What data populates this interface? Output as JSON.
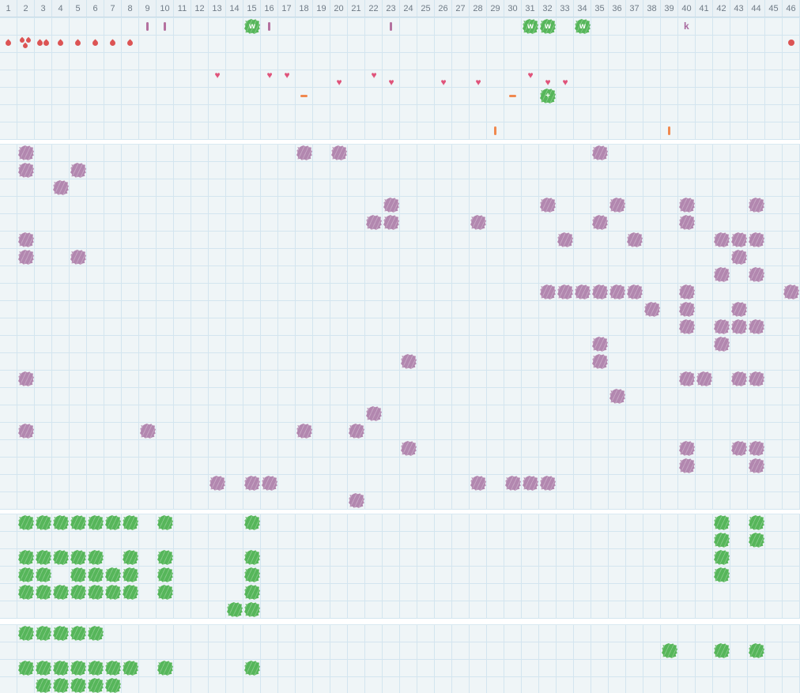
{
  "header": {
    "columns": [
      "1",
      "2",
      "3",
      "4",
      "5",
      "6",
      "7",
      "8",
      "9",
      "10",
      "11",
      "12",
      "13",
      "14",
      "15",
      "16",
      "17",
      "18",
      "19",
      "20",
      "21",
      "22",
      "23",
      "24",
      "25",
      "26",
      "27",
      "28",
      "29",
      "30",
      "31",
      "32",
      "33",
      "34",
      "35",
      "36",
      "37",
      "38",
      "39",
      "40",
      "41",
      "42",
      "43",
      "44",
      "45",
      "46"
    ]
  },
  "icons": {
    "w_blob_letter": "w",
    "plus_blob_letter": "+",
    "k_marker_letter": "k",
    "heart_glyph": "♥"
  },
  "colors": {
    "grid_background": "#eff5f7",
    "grid_line": "#d3e5ef",
    "header_background": "#eaf1f5",
    "header_text": "#6f7b86",
    "purple_blob": "#b287af",
    "green_blob": "#56b65a",
    "heart": "#e0537a",
    "drop_red": "#dc5454",
    "purple_tick": "#b4719f",
    "orange_mark": "#f0884e",
    "k_letter": "#a8689e"
  },
  "sections": {
    "top": {
      "rows": 7,
      "sprites": [
        {
          "type": "tick",
          "col": 9,
          "row": 1,
          "color": "purple"
        },
        {
          "type": "tick",
          "col": 10,
          "row": 1,
          "color": "purple"
        },
        {
          "type": "wblob",
          "col": 15,
          "row": 1
        },
        {
          "type": "tick",
          "col": 16,
          "row": 1,
          "color": "purple"
        },
        {
          "type": "tick",
          "col": 23,
          "row": 1,
          "color": "purple"
        },
        {
          "type": "wblob",
          "col": 31,
          "row": 1
        },
        {
          "type": "wblob",
          "col": 32,
          "row": 1
        },
        {
          "type": "wblob",
          "col": 34,
          "row": 1
        },
        {
          "type": "kmark",
          "col": 40,
          "row": 1
        },
        {
          "type": "drops",
          "col": 1,
          "row": 2,
          "count": 1
        },
        {
          "type": "drops",
          "col": 2,
          "row": 2,
          "count": 3
        },
        {
          "type": "drops",
          "col": 3,
          "row": 2,
          "count": 2
        },
        {
          "type": "drops",
          "col": 4,
          "row": 2,
          "count": 1
        },
        {
          "type": "drops",
          "col": 5,
          "row": 2,
          "count": 1
        },
        {
          "type": "drops",
          "col": 6,
          "row": 2,
          "count": 1
        },
        {
          "type": "drops",
          "col": 7,
          "row": 2,
          "count": 1
        },
        {
          "type": "drops",
          "col": 8,
          "row": 2,
          "count": 1
        },
        {
          "type": "dot",
          "col": 46,
          "row": 2
        },
        {
          "type": "heart",
          "col": 13,
          "row": 4,
          "pos": "high"
        },
        {
          "type": "heart",
          "col": 16,
          "row": 4,
          "pos": "high"
        },
        {
          "type": "heart",
          "col": 17,
          "row": 4,
          "pos": "high"
        },
        {
          "type": "heart",
          "col": 22,
          "row": 4,
          "pos": "high"
        },
        {
          "type": "heart",
          "col": 31,
          "row": 4,
          "pos": "high"
        },
        {
          "type": "heart",
          "col": 20,
          "row": 4,
          "pos": "low"
        },
        {
          "type": "heart",
          "col": 23,
          "row": 4,
          "pos": "low"
        },
        {
          "type": "heart",
          "col": 26,
          "row": 4,
          "pos": "low"
        },
        {
          "type": "heart",
          "col": 28,
          "row": 4,
          "pos": "low"
        },
        {
          "type": "heart",
          "col": 32,
          "row": 4,
          "pos": "low"
        },
        {
          "type": "heart",
          "col": 33,
          "row": 4,
          "pos": "low"
        },
        {
          "type": "dash",
          "col": 18,
          "row": 5
        },
        {
          "type": "dash",
          "col": 30,
          "row": 5
        },
        {
          "type": "plusblob",
          "col": 32,
          "row": 5
        },
        {
          "type": "tick",
          "col": 29,
          "row": 7,
          "color": "orange"
        },
        {
          "type": "tick",
          "col": 39,
          "row": 7,
          "color": "orange"
        }
      ]
    },
    "field": {
      "rows": 21,
      "purple_blobs": [
        [
          2,
          1
        ],
        [
          18,
          1
        ],
        [
          20,
          1
        ],
        [
          35,
          1
        ],
        [
          2,
          2
        ],
        [
          5,
          2
        ],
        [
          4,
          3
        ],
        [
          23,
          4
        ],
        [
          32,
          4
        ],
        [
          36,
          4
        ],
        [
          40,
          4
        ],
        [
          44,
          4
        ],
        [
          22,
          5
        ],
        [
          23,
          5
        ],
        [
          28,
          5
        ],
        [
          35,
          5
        ],
        [
          40,
          5
        ],
        [
          2,
          6
        ],
        [
          33,
          6
        ],
        [
          37,
          6
        ],
        [
          42,
          6
        ],
        [
          43,
          6
        ],
        [
          44,
          6
        ],
        [
          2,
          7
        ],
        [
          5,
          7
        ],
        [
          43,
          7
        ],
        [
          42,
          8
        ],
        [
          44,
          8
        ],
        [
          32,
          9
        ],
        [
          33,
          9
        ],
        [
          34,
          9
        ],
        [
          35,
          9
        ],
        [
          36,
          9
        ],
        [
          37,
          9
        ],
        [
          40,
          9
        ],
        [
          46,
          9
        ],
        [
          38,
          10
        ],
        [
          40,
          10
        ],
        [
          43,
          10
        ],
        [
          40,
          11
        ],
        [
          42,
          11
        ],
        [
          43,
          11
        ],
        [
          44,
          11
        ],
        [
          35,
          12
        ],
        [
          42,
          12
        ],
        [
          24,
          13
        ],
        [
          35,
          13
        ],
        [
          2,
          14
        ],
        [
          40,
          14
        ],
        [
          41,
          14
        ],
        [
          43,
          14
        ],
        [
          44,
          14
        ],
        [
          36,
          15
        ],
        [
          22,
          16
        ],
        [
          2,
          17
        ],
        [
          9,
          17
        ],
        [
          18,
          17
        ],
        [
          21,
          17
        ],
        [
          24,
          18
        ],
        [
          40,
          18
        ],
        [
          43,
          18
        ],
        [
          44,
          18
        ],
        [
          40,
          19
        ],
        [
          44,
          19
        ],
        [
          13,
          20
        ],
        [
          15,
          20
        ],
        [
          16,
          20
        ],
        [
          28,
          20
        ],
        [
          30,
          20
        ],
        [
          31,
          20
        ],
        [
          32,
          20
        ],
        [
          21,
          21
        ]
      ]
    },
    "green1": {
      "rows": 6,
      "green_blobs": [
        [
          2,
          1
        ],
        [
          3,
          1
        ],
        [
          4,
          1
        ],
        [
          5,
          1
        ],
        [
          6,
          1
        ],
        [
          7,
          1
        ],
        [
          8,
          1
        ],
        [
          10,
          1
        ],
        [
          15,
          1
        ],
        [
          42,
          1
        ],
        [
          44,
          1
        ],
        [
          42,
          2
        ],
        [
          44,
          2
        ],
        [
          2,
          3
        ],
        [
          3,
          3
        ],
        [
          4,
          3
        ],
        [
          5,
          3
        ],
        [
          6,
          3
        ],
        [
          8,
          3
        ],
        [
          10,
          3
        ],
        [
          15,
          3
        ],
        [
          42,
          3
        ],
        [
          2,
          4
        ],
        [
          3,
          4
        ],
        [
          5,
          4
        ],
        [
          6,
          4
        ],
        [
          7,
          4
        ],
        [
          8,
          4
        ],
        [
          10,
          4
        ],
        [
          15,
          4
        ],
        [
          42,
          4
        ],
        [
          2,
          5
        ],
        [
          3,
          5
        ],
        [
          4,
          5
        ],
        [
          5,
          5
        ],
        [
          6,
          5
        ],
        [
          7,
          5
        ],
        [
          8,
          5
        ],
        [
          10,
          5
        ],
        [
          15,
          5
        ],
        [
          14,
          6
        ],
        [
          15,
          6
        ]
      ]
    },
    "green2": {
      "rows": 4,
      "green_blobs": [
        [
          2,
          1
        ],
        [
          3,
          1
        ],
        [
          4,
          1
        ],
        [
          5,
          1
        ],
        [
          6,
          1
        ],
        [
          39,
          2
        ],
        [
          42,
          2
        ],
        [
          44,
          2
        ],
        [
          2,
          3
        ],
        [
          3,
          3
        ],
        [
          4,
          3
        ],
        [
          5,
          3
        ],
        [
          6,
          3
        ],
        [
          7,
          3
        ],
        [
          8,
          3
        ],
        [
          10,
          3
        ],
        [
          15,
          3
        ],
        [
          3,
          4
        ],
        [
          4,
          4
        ],
        [
          5,
          4
        ],
        [
          6,
          4
        ],
        [
          7,
          4
        ]
      ]
    }
  }
}
